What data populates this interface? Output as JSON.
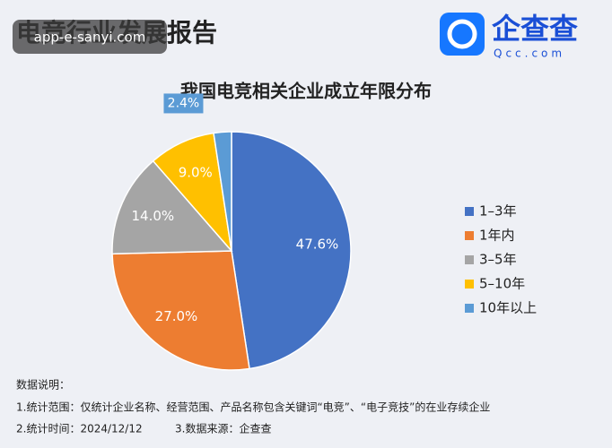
{
  "header": {
    "title": "电竞行业发展报告",
    "watermark": "app-e-sanyi.com",
    "logo_name": "企查查",
    "logo_url": "Qcc.com"
  },
  "chart_data": {
    "type": "pie",
    "title": "我国电竞相关企业成立年限分布",
    "categories": [
      "1–3年",
      "1年内",
      "3–5年",
      "5–10年",
      "10年以上"
    ],
    "values": [
      47.6,
      27.0,
      14.0,
      9.0,
      2.4
    ],
    "value_labels": [
      "47.6%",
      "27.0%",
      "14.0%",
      "9.0%",
      "2.4%"
    ],
    "colors": [
      "#4472c4",
      "#ed7d31",
      "#a5a5a5",
      "#ffc000",
      "#5b9bd5"
    ],
    "legend": "right"
  },
  "notes": {
    "heading": "数据说明：",
    "scope": "1.统计范围：仅统计企业名称、经营范围、产品名称包含关键词“电竞”、“电子竞技”的在业存续企业",
    "time": "2.统计时间：2024/12/12",
    "source": "3.数据来源：企查查"
  }
}
